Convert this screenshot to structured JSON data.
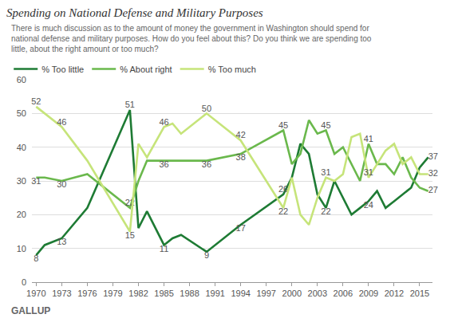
{
  "chart_data": {
    "type": "line",
    "title": "Spending on National Defense and Military Purposes",
    "subtitle": "There is much discussion as to the amount of money the government in Washington should spend for national defense and military purposes. How do you feel about this? Do you think we are spending too little, about the right amount or too much?",
    "footer": "GALLUP",
    "x": [
      1970,
      1971,
      1973,
      1976,
      1981,
      1982,
      1983,
      1985,
      1986,
      1987,
      1990,
      1994,
      1999,
      2000,
      2001,
      2002,
      2003,
      2004,
      2005,
      2006,
      2007,
      2008,
      2009,
      2010,
      2011,
      2012,
      2013,
      2014,
      2015,
      2016
    ],
    "series": [
      {
        "name": "% Too little",
        "color": "#1e7b34",
        "values": [
          8,
          11,
          13,
          22,
          51,
          16,
          21,
          11,
          13,
          14,
          9,
          17,
          26,
          31,
          41,
          38,
          26,
          22,
          30,
          25,
          20,
          22,
          24,
          27,
          22,
          24,
          26,
          28,
          34,
          37
        ],
        "value_labels": [
          "8",
          null,
          "13",
          null,
          "51",
          null,
          null,
          "11",
          null,
          null,
          "9",
          "17",
          "26",
          null,
          null,
          null,
          null,
          "22",
          null,
          null,
          null,
          null,
          "24",
          null,
          null,
          null,
          null,
          null,
          null,
          "37"
        ]
      },
      {
        "name": "% About right",
        "color": "#6ab84c",
        "values": [
          31,
          31,
          30,
          32,
          22,
          30,
          36,
          36,
          36,
          36,
          36,
          38,
          45,
          35,
          38,
          48,
          44,
          45,
          38,
          40,
          35,
          30,
          41,
          35,
          35,
          32,
          37,
          31,
          28,
          27
        ],
        "value_labels": [
          "31",
          null,
          "30",
          null,
          "22",
          null,
          null,
          "36",
          null,
          null,
          "36",
          "38",
          "45",
          null,
          null,
          null,
          null,
          "45",
          null,
          null,
          null,
          null,
          "41",
          null,
          null,
          null,
          null,
          null,
          null,
          "27"
        ]
      },
      {
        "name": "% Too much",
        "color": "#c6e47a",
        "values": [
          52,
          50,
          46,
          36,
          15,
          41,
          37,
          46,
          47,
          44,
          50,
          42,
          22,
          31,
          20,
          17,
          25,
          31,
          30,
          32,
          43,
          44,
          31,
          35,
          39,
          41,
          35,
          37,
          32,
          32
        ],
        "value_labels": [
          "52",
          null,
          "46",
          null,
          "15",
          null,
          null,
          "46",
          null,
          null,
          "50",
          "42",
          "22",
          null,
          null,
          null,
          null,
          "31",
          null,
          null,
          null,
          null,
          "31",
          null,
          null,
          null,
          null,
          null,
          null,
          "32"
        ]
      }
    ],
    "xlim": [
      1969.5,
      2016.5
    ],
    "xticks": [
      1970,
      1973,
      1976,
      1979,
      1982,
      1985,
      1988,
      1991,
      1994,
      1997,
      2000,
      2003,
      2006,
      2009,
      2012,
      2015
    ],
    "ylim": [
      0,
      60
    ],
    "yticks": [
      0,
      10,
      20,
      30,
      40,
      50,
      60
    ],
    "grid": true,
    "legend": "top left",
    "data_labels": true
  }
}
